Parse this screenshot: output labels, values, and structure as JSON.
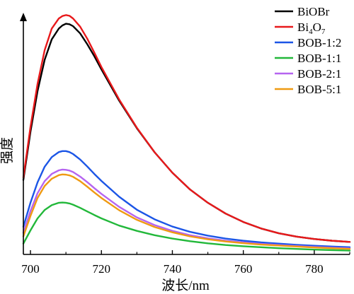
{
  "chart_data": {
    "type": "line",
    "xlabel": "波长/nm",
    "ylabel": "强度",
    "x_ticks": [
      700,
      720,
      740,
      760,
      780
    ],
    "xlim": [
      698,
      790
    ],
    "ylim": [
      0,
      100
    ],
    "y_ticks_shown": false,
    "grid": false,
    "legend_position": "top-right",
    "x": [
      698,
      700,
      702,
      704,
      706,
      708,
      709,
      710,
      711,
      712,
      714,
      716,
      718,
      720,
      725,
      730,
      735,
      740,
      745,
      750,
      755,
      760,
      765,
      770,
      775,
      780,
      785,
      790
    ],
    "series": [
      {
        "name": "BiOBr",
        "label_base": "BiOBr",
        "label_sub": "",
        "color": "#000000",
        "values": [
          31.0,
          51.0,
          68.0,
          81.0,
          89.5,
          94.0,
          95.3,
          96.0,
          95.8,
          95.0,
          92.0,
          87.5,
          82.5,
          77.0,
          64.0,
          52.5,
          42.5,
          34.0,
          27.0,
          21.5,
          17.0,
          13.5,
          10.8,
          8.8,
          7.4,
          6.4,
          5.7,
          5.2
        ]
      },
      {
        "name": "Bi4O7",
        "label_base": "Bi",
        "label_sub": "4",
        "label_mid": "O",
        "label_sub2": "7",
        "color": "#e8191b",
        "values": [
          32.0,
          53.0,
          71.0,
          85.0,
          94.0,
          98.2,
          99.2,
          99.6,
          99.3,
          98.2,
          94.8,
          89.8,
          84.0,
          78.0,
          64.5,
          52.7,
          42.5,
          34.0,
          27.0,
          21.5,
          17.0,
          13.5,
          10.8,
          8.8,
          7.4,
          6.4,
          5.7,
          5.2
        ]
      },
      {
        "name": "BOB-1:2",
        "label_base": "BOB-1:2",
        "color": "#1b55e6",
        "values": [
          11.5,
          21.5,
          30.0,
          36.5,
          40.5,
          42.6,
          43.0,
          43.0,
          42.6,
          41.8,
          39.5,
          36.6,
          33.5,
          30.6,
          24.0,
          18.6,
          14.6,
          11.6,
          9.4,
          7.8,
          6.6,
          5.7,
          5.0,
          4.5,
          4.0,
          3.6,
          3.3,
          3.0
        ]
      },
      {
        "name": "BOB-1:1",
        "label_base": "BOB-1:1",
        "color": "#22b83a",
        "values": [
          4.5,
          10.0,
          15.0,
          18.5,
          20.5,
          21.5,
          21.6,
          21.5,
          21.2,
          20.7,
          19.4,
          17.9,
          16.4,
          15.0,
          12.0,
          9.8,
          8.0,
          6.6,
          5.5,
          4.6,
          3.9,
          3.4,
          3.0,
          2.6,
          2.3,
          2.0,
          1.8,
          1.6
        ]
      },
      {
        "name": "BOB-2:1",
        "label_base": "BOB-2:1",
        "color": "#b564f0",
        "values": [
          9.0,
          18.0,
          25.5,
          30.5,
          33.5,
          35.0,
          35.3,
          35.2,
          34.9,
          34.3,
          32.4,
          30.1,
          27.6,
          25.2,
          19.8,
          15.4,
          12.2,
          9.8,
          8.0,
          6.7,
          5.7,
          5.0,
          4.4,
          3.9,
          3.5,
          3.1,
          2.8,
          2.5
        ]
      },
      {
        "name": "BOB-5:1",
        "label_base": "BOB-5:1",
        "color": "#ef9a12",
        "values": [
          7.5,
          16.0,
          23.5,
          28.5,
          31.5,
          33.0,
          33.3,
          33.2,
          32.9,
          32.3,
          30.5,
          28.2,
          25.8,
          23.5,
          18.4,
          14.4,
          11.4,
          9.2,
          7.5,
          6.3,
          5.4,
          4.7,
          4.1,
          3.7,
          3.3,
          2.9,
          2.6,
          2.3
        ]
      }
    ]
  }
}
